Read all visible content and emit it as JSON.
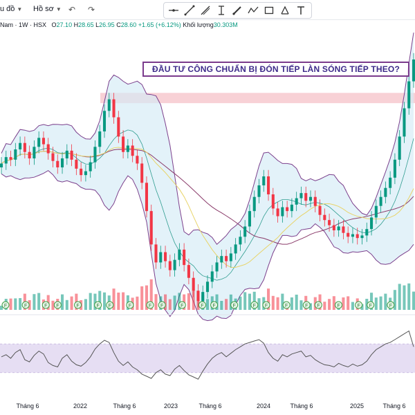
{
  "toolbar": {
    "menu_partial": "u đồ",
    "profile_label": "Hồ sơ",
    "undo_icon": "undo-icon",
    "redo_icon": "redo-icon",
    "drawing_tools": [
      "crosshair-line-icon",
      "trend-line-icon",
      "ray-icon",
      "text-cursor-icon",
      "brush-icon",
      "zigzag-icon",
      "rectangle-icon",
      "eraser-icon",
      "text-t-icon"
    ]
  },
  "legend": {
    "symbol": "Nam · 1W · HSX",
    "open_label": "O",
    "open": "27.10",
    "high_label": "H",
    "high": "28.65",
    "low_label": "L",
    "low": "26.95",
    "close_label": "C",
    "close": "28.60",
    "change": "+1.65 (+6.12%)",
    "volume_label": "Khối lượng",
    "volume": "30.303M"
  },
  "annotation": {
    "headline": "ĐẦU TƯ CÔNG CHUẨN BỊ ĐÓN TIẾP LÀN SÓNG TIẾP THEO?"
  },
  "colors": {
    "up": "#089981",
    "down": "#f23645",
    "band_fill": "#d4ebf6",
    "band_line": "#7b3f8c",
    "resistance_zone": "#f6c6cc",
    "rsi_fill": "#e6def3",
    "rsi_line": "#555555"
  },
  "chart_data": {
    "type": "candlestick",
    "title": "",
    "xlabel": "",
    "ylabel": "",
    "timeframe": "1W",
    "x_ticks": [
      "Tháng 6",
      "2022",
      "Tháng 6",
      "2023",
      "Tháng 6",
      "2024",
      "Tháng 6",
      "2025",
      "Tháng 6"
    ],
    "close_series": [
      20.5,
      21.0,
      20.8,
      21.6,
      22.1,
      21.4,
      20.9,
      21.8,
      22.5,
      22.0,
      21.3,
      20.7,
      20.2,
      20.9,
      21.5,
      20.8,
      20.1,
      19.6,
      19.9,
      20.6,
      21.8,
      23.0,
      24.6,
      25.5,
      24.1,
      22.6,
      21.4,
      21.9,
      21.1,
      20.5,
      19.0,
      16.8,
      14.2,
      12.8,
      13.6,
      12.9,
      12.2,
      13.0,
      13.8,
      12.6,
      11.6,
      10.6,
      9.8,
      10.5,
      11.3,
      12.1,
      12.8,
      13.3,
      12.9,
      13.5,
      14.2,
      14.8,
      15.6,
      16.8,
      17.9,
      18.8,
      19.5,
      18.1,
      17.0,
      16.4,
      17.1,
      16.8,
      17.3,
      17.8,
      18.2,
      17.6,
      17.9,
      17.2,
      16.5,
      16.1,
      15.7,
      15.3,
      15.6,
      15.1,
      14.8,
      15.0,
      14.7,
      14.9,
      15.4,
      16.3,
      17.2,
      17.9,
      18.6,
      19.4,
      20.8,
      22.6,
      24.8,
      26.9,
      28.6
    ],
    "resistance_zone": [
      25.2,
      26.0
    ],
    "ylim": [
      9,
      30
    ],
    "volume_markers": [
      "F",
      "F",
      "F",
      "F",
      "F",
      "F",
      "F",
      "F",
      "F",
      "F",
      "F",
      "F",
      "F",
      "F",
      "F",
      "F",
      "F",
      "F",
      "F",
      "F",
      "F",
      "F",
      "F"
    ],
    "rsi": {
      "values": [
        52,
        55,
        50,
        58,
        62,
        48,
        45,
        54,
        60,
        56,
        44,
        40,
        38,
        50,
        55,
        46,
        41,
        39,
        44,
        52,
        63,
        70,
        75,
        72,
        58,
        46,
        40,
        45,
        38,
        34,
        28,
        25,
        22,
        30,
        34,
        28,
        26,
        35,
        40,
        33,
        27,
        24,
        21,
        32,
        42,
        50,
        55,
        58,
        52,
        57,
        62,
        66,
        70,
        72,
        74,
        76,
        71,
        58,
        50,
        46,
        55,
        52,
        56,
        58,
        60,
        52,
        54,
        48,
        44,
        41,
        40,
        38,
        43,
        40,
        38,
        42,
        39,
        41,
        46,
        55,
        62,
        66,
        70,
        72,
        76,
        80,
        84,
        88,
        66
      ],
      "ylim": [
        0,
        100
      ],
      "band": [
        30,
        70
      ]
    }
  }
}
